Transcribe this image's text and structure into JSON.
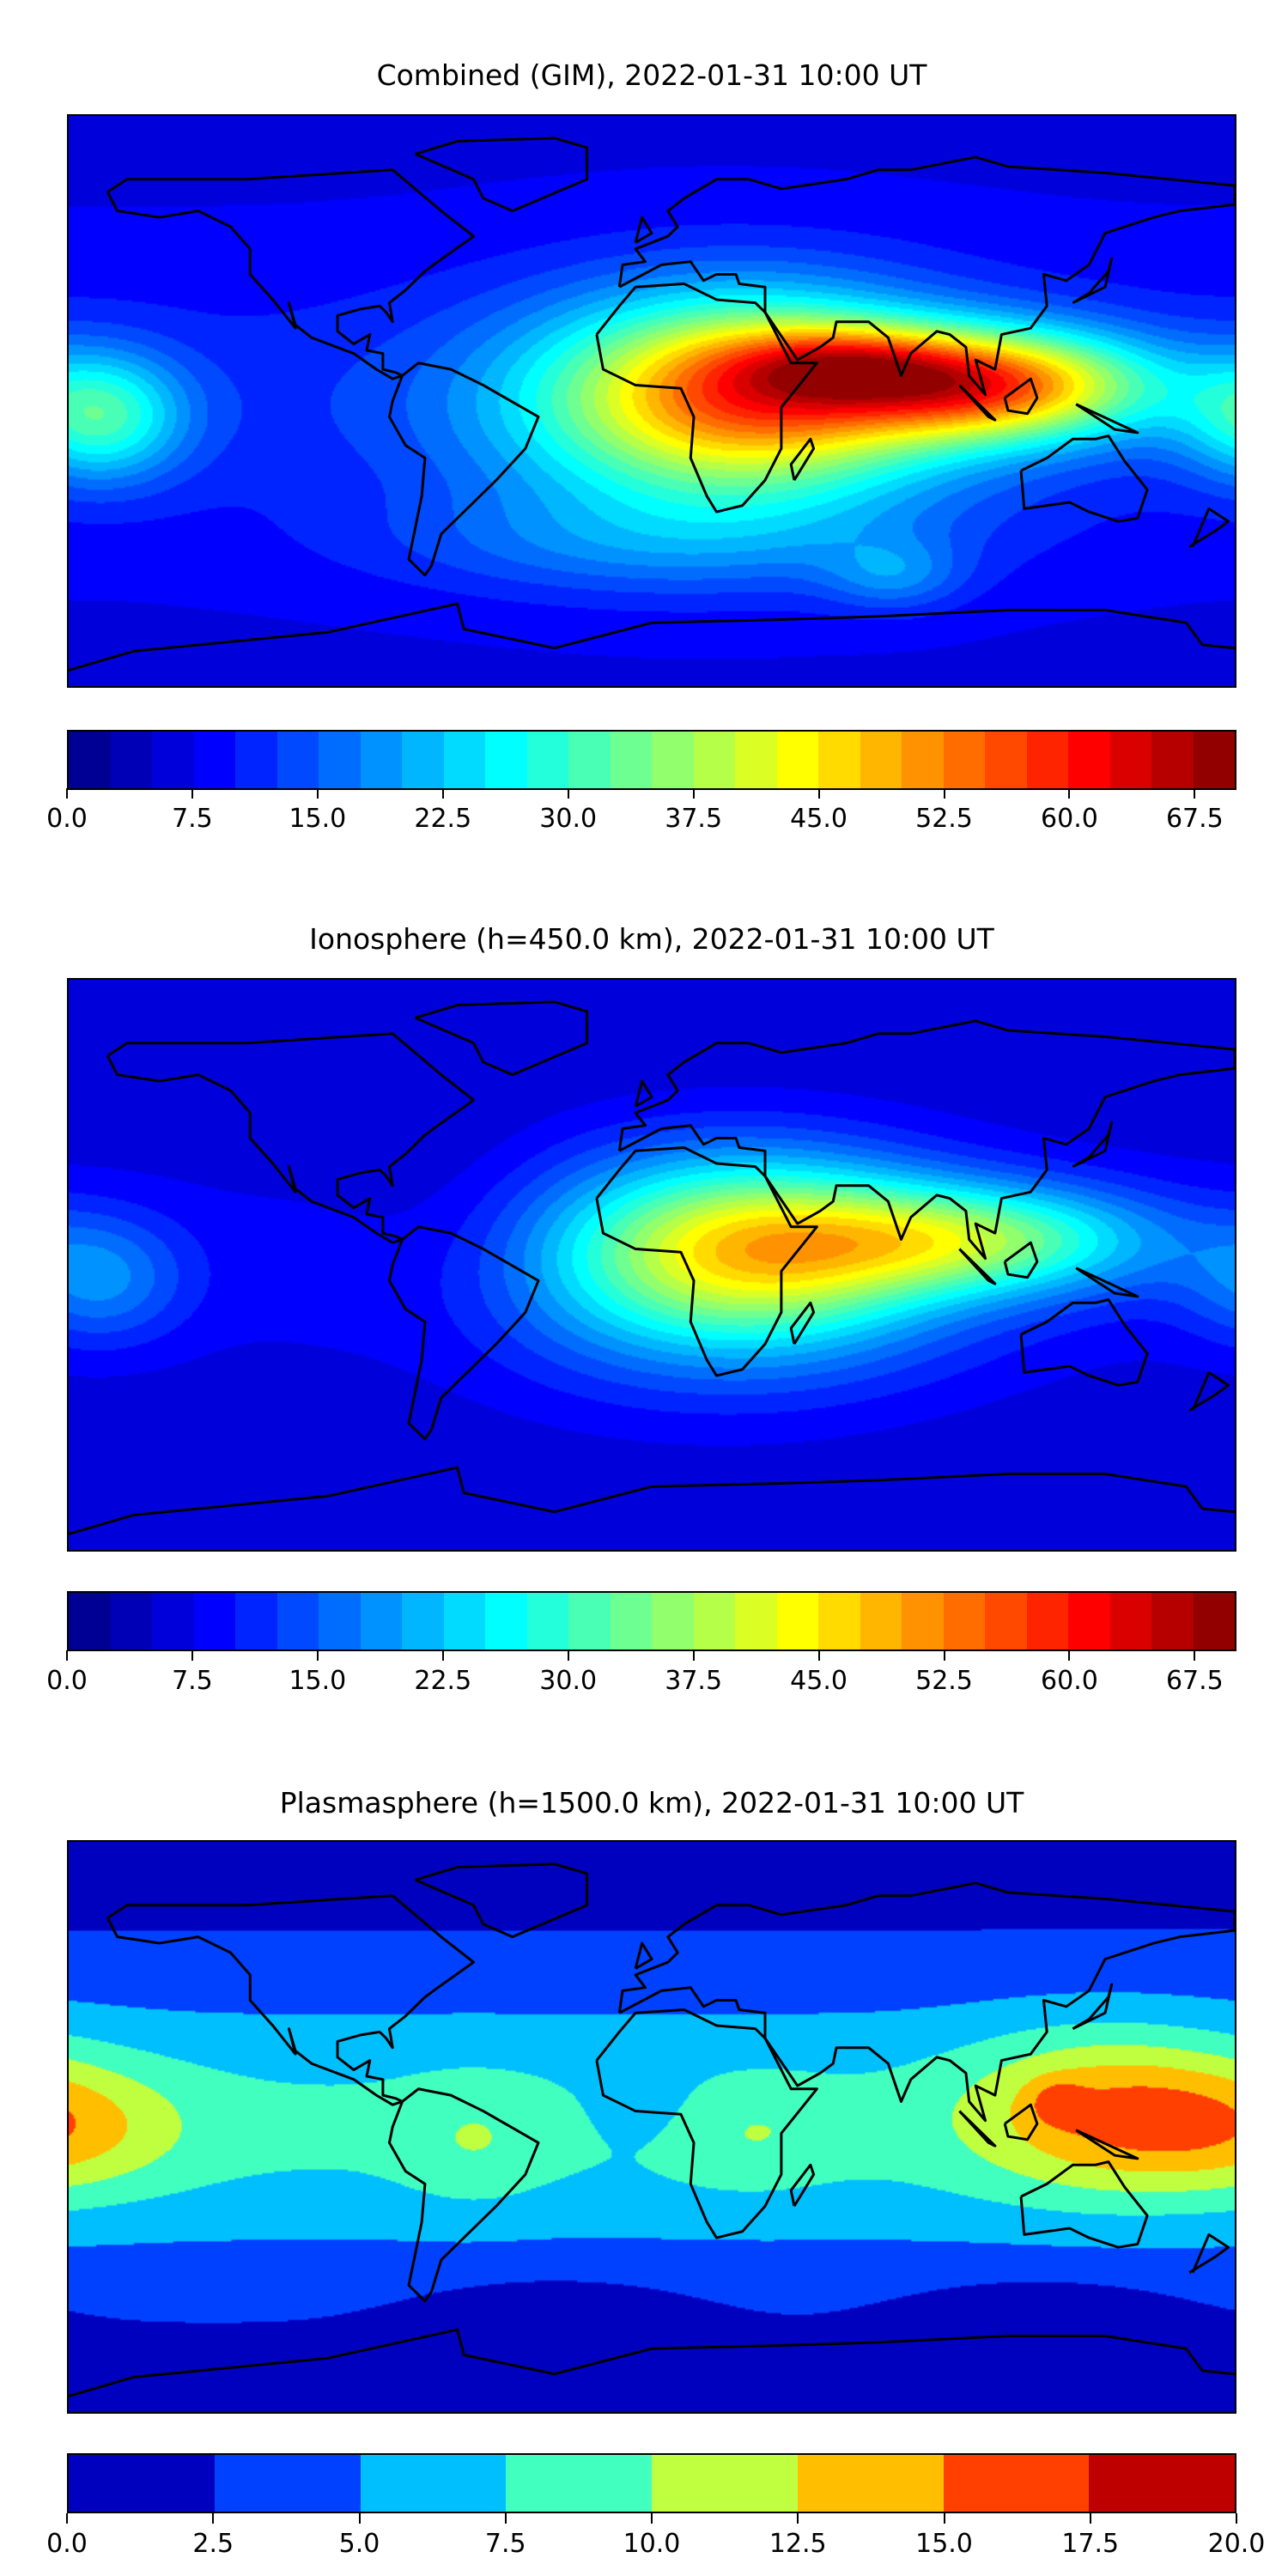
{
  "chart_data": [
    {
      "type": "heatmap",
      "subtype": "filled-contour-map",
      "title": "Combined (GIM), 2022-01-31 10:00 UT",
      "projection": "equirectangular",
      "xlim": [
        -180,
        180
      ],
      "ylim": [
        -90,
        90
      ],
      "colormap": "jet",
      "levels": {
        "min": 0,
        "max": 70,
        "step": 2.5
      },
      "colorbar_ticks": [
        "0.0",
        "7.5",
        "15.0",
        "22.5",
        "30.0",
        "37.5",
        "45.0",
        "52.5",
        "60.0",
        "67.5"
      ],
      "colorbar_tick_values": [
        0,
        7.5,
        15,
        22.5,
        30,
        37.5,
        45,
        52.5,
        60,
        67.5
      ],
      "field": {
        "base": 7,
        "equatorial_band": {
          "amp": 4,
          "lat_width": 30
        },
        "features": [
          {
            "lon": 30,
            "lat": 3,
            "value": 32,
            "lon_width": 40,
            "lat_width": 20
          },
          {
            "lon": 105,
            "lat": 5,
            "value": 40,
            "lon_width": 35,
            "lat_width": 12
          },
          {
            "lon": 60,
            "lat": 12,
            "value": 15,
            "lon_width": 25,
            "lat_width": 8
          },
          {
            "lon": 20,
            "lat": -5,
            "value": 14,
            "lon_width": 55,
            "lat_width": 28
          },
          {
            "lon": -170,
            "lat": -5,
            "value": 20,
            "lon_width": 18,
            "lat_width": 14
          },
          {
            "lon": 0,
            "lat": -45,
            "value": 7,
            "lon_width": 60,
            "lat_width": 12
          },
          {
            "lon": 75,
            "lat": -55,
            "value": 8,
            "lon_width": 15,
            "lat_width": 8
          }
        ]
      }
    },
    {
      "type": "heatmap",
      "subtype": "filled-contour-map",
      "title": "Ionosphere  (h=450.0 km), 2022-01-31 10:00 UT",
      "projection": "equirectangular",
      "xlim": [
        -180,
        180
      ],
      "ylim": [
        -90,
        90
      ],
      "colormap": "jet",
      "levels": {
        "min": 0,
        "max": 70,
        "step": 2.5
      },
      "colorbar_ticks": [
        "0.0",
        "7.5",
        "15.0",
        "22.5",
        "30.0",
        "37.5",
        "45.0",
        "52.5",
        "60.0",
        "67.5"
      ],
      "colorbar_tick_values": [
        0,
        7.5,
        15,
        22.5,
        30,
        37.5,
        45,
        52.5,
        60,
        67.5
      ],
      "field": {
        "base": 5,
        "equatorial_band": {
          "amp": 3,
          "lat_width": 30
        },
        "features": [
          {
            "lon": 30,
            "lat": 5,
            "value": 28,
            "lon_width": 40,
            "lat_width": 20
          },
          {
            "lon": 100,
            "lat": 8,
            "value": 24,
            "lon_width": 40,
            "lat_width": 12
          },
          {
            "lon": 20,
            "lat": -5,
            "value": 10,
            "lon_width": 55,
            "lat_width": 28
          },
          {
            "lon": -170,
            "lat": -5,
            "value": 10,
            "lon_width": 18,
            "lat_width": 14
          },
          {
            "lon": -60,
            "lat": 10,
            "value": -3,
            "lon_width": 25,
            "lat_width": 25
          }
        ]
      }
    },
    {
      "type": "heatmap",
      "subtype": "filled-contour-map",
      "title": "Plasmasphere (h=1500.0 km), 2022-01-31 10:00 UT",
      "projection": "equirectangular",
      "xlim": [
        -180,
        180
      ],
      "ylim": [
        -90,
        90
      ],
      "colormap": "jet",
      "levels": {
        "min": 0,
        "max": 20,
        "step": 2.5
      },
      "colorbar_ticks": [
        "0.0",
        "2.5",
        "5.0",
        "7.5",
        "10.0",
        "12.5",
        "15.0",
        "17.5",
        "20.0"
      ],
      "colorbar_tick_values": [
        0,
        2.5,
        5,
        7.5,
        10,
        12.5,
        15,
        17.5,
        20
      ],
      "field": {
        "base": 1.5,
        "equatorial_band": {
          "amp": 6.5,
          "lat_width": 32
        },
        "features": [
          {
            "lon": 140,
            "lat": 5,
            "value": 7,
            "lon_width": 30,
            "lat_width": 18
          },
          {
            "lon": 125,
            "lat": 8,
            "value": 3,
            "lon_width": 6,
            "lat_width": 5
          },
          {
            "lon": -180,
            "lat": 0,
            "value": 4.5,
            "lon_width": 25,
            "lat_width": 14
          },
          {
            "lon": -55,
            "lat": -5,
            "value": 2.2,
            "lon_width": 15,
            "lat_width": 14
          },
          {
            "lon": 30,
            "lat": -2,
            "value": 2.2,
            "lon_width": 18,
            "lat_width": 12
          },
          {
            "lon": 0,
            "lat": 5,
            "value": -1.5,
            "lon_width": 15,
            "lat_width": 10
          },
          {
            "lon": -30,
            "lat": -60,
            "value": -2,
            "lon_width": 30,
            "lat_width": 10
          },
          {
            "lon": 120,
            "lat": -60,
            "value": -2,
            "lon_width": 30,
            "lat_width": 10
          }
        ]
      }
    }
  ]
}
